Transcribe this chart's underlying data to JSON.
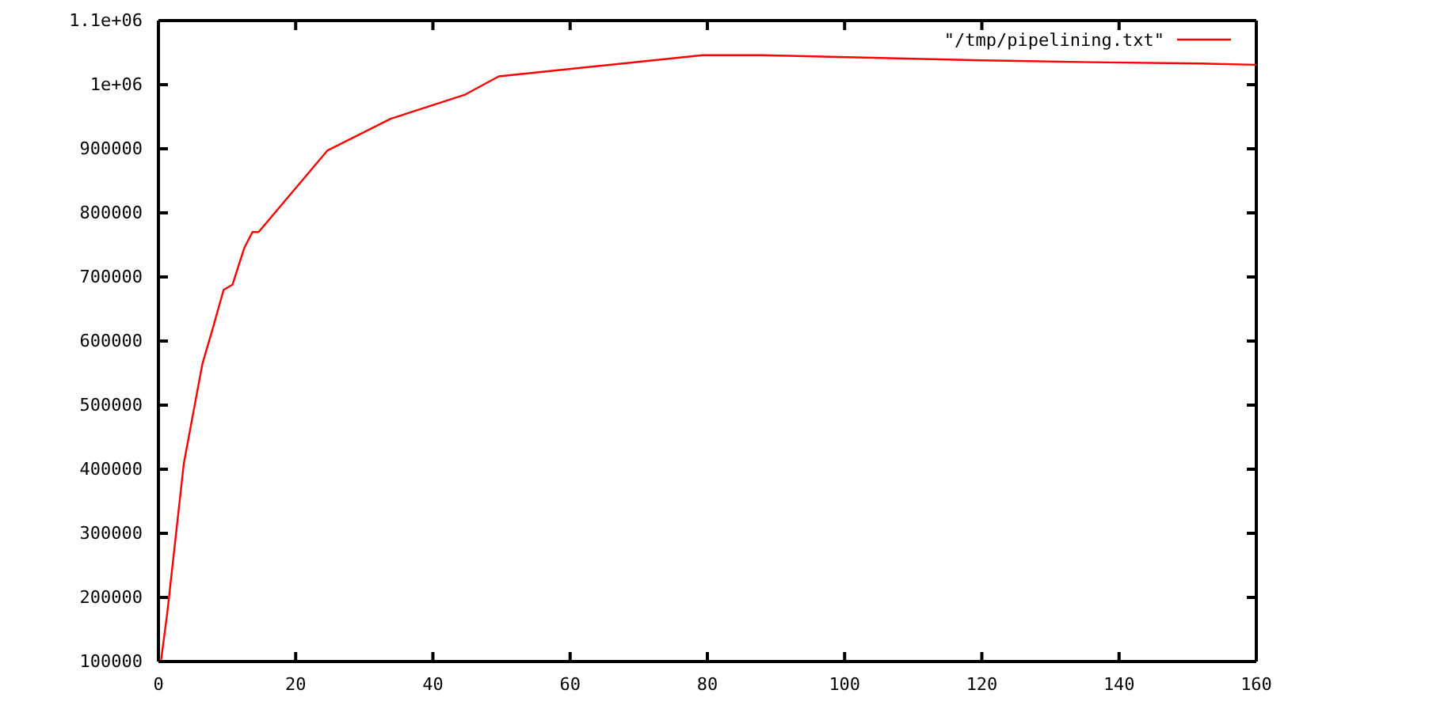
{
  "chart_data": {
    "type": "line",
    "x": [
      0.4,
      1.3,
      3.7,
      6.4,
      7.9,
      9.5,
      10.8,
      12.5,
      13.7,
      14.6,
      24.6,
      33.9,
      44.6,
      49.6,
      79.3,
      87.8,
      104,
      120,
      136,
      152,
      160
    ],
    "series": [
      {
        "name": "\"/tmp/pipelining.txt\"",
        "color": "#ff0000",
        "values": [
          103000,
          177000,
          409000,
          564000,
          619000,
          680000,
          688000,
          745000,
          770000,
          770000,
          897000,
          947000,
          984000,
          1013000,
          1046000,
          1046000,
          1042000,
          1038000,
          1035000,
          1033000,
          1031000
        ]
      }
    ],
    "xlim": [
      0,
      160
    ],
    "xticks": [
      0,
      20,
      40,
      60,
      80,
      100,
      120,
      140,
      160
    ],
    "ylim": [
      100000,
      1100000
    ],
    "yticks": [
      100000,
      200000,
      300000,
      400000,
      500000,
      600000,
      700000,
      800000,
      900000,
      {
        "value": 1000000,
        "label": "1e+06"
      },
      {
        "value": 1100000,
        "label": "1.1e+06"
      }
    ],
    "grid": false,
    "legend": "top right",
    "line_style": "solid",
    "marker": "none"
  }
}
